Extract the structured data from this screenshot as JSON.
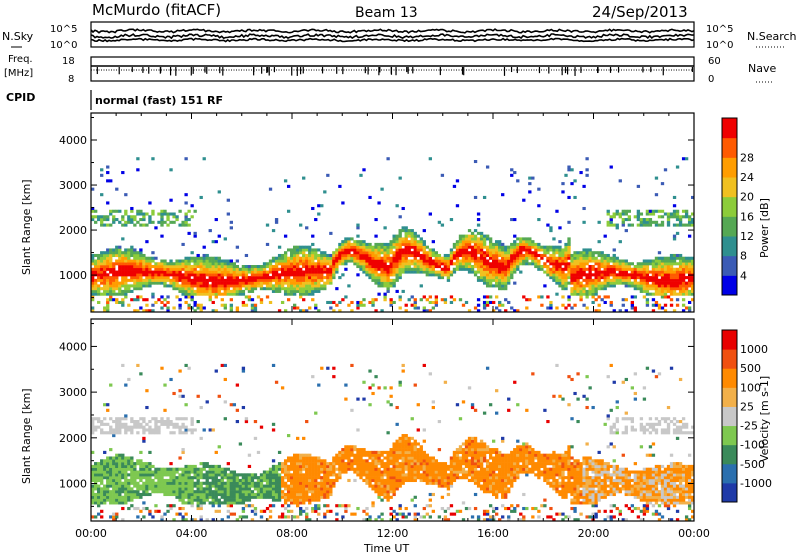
{
  "header": {
    "title": "McMurdo (fitACF)",
    "beam": "Beam 13",
    "date": "24/Sep/2013"
  },
  "noise_panel": {
    "left_label": "N.Sky",
    "right_label": "N.Search",
    "left_ticks": [
      "10^5",
      "10^0"
    ],
    "right_ticks": [
      "10^5",
      "10^0"
    ]
  },
  "freq_panel": {
    "left_label": "Freq.",
    "left_unit": "[MHz]",
    "right_label": "Nave",
    "left_ticks": [
      "18",
      "8"
    ],
    "right_ticks": [
      "60",
      "0"
    ]
  },
  "cpid": {
    "label": "CPID",
    "value": "normal (fast) 151 RF"
  },
  "chart_data": [
    {
      "type": "heatmap",
      "name": "power",
      "ylabel": "Slant Range [km]",
      "ylim": [
        180,
        4600
      ],
      "yticks": [
        1000,
        2000,
        3000,
        4000
      ],
      "xlim_hours": [
        0,
        24
      ],
      "colorbar": {
        "label": "Power [dB]",
        "ticks": [
          "4",
          "8",
          "12",
          "16",
          "20",
          "24",
          "28"
        ],
        "colors": [
          "#0000e6",
          "#3b5bb5",
          "#2f8f8f",
          "#55a854",
          "#8ccc3a",
          "#f0c020",
          "#ff9d00",
          "#ff5a00",
          "#ef0000"
        ]
      }
    },
    {
      "type": "heatmap",
      "name": "velocity",
      "ylabel": "Slant Range [km]",
      "ylim": [
        180,
        4600
      ],
      "yticks": [
        1000,
        2000,
        3000,
        4000
      ],
      "xlim_hours": [
        0,
        24
      ],
      "colorbar": {
        "label": "Velocity [m s-1]",
        "ticks": [
          "1000",
          "500",
          "100",
          "25",
          "-25",
          "-100",
          "-500",
          "-1000"
        ],
        "colors": [
          "#1f3aa8",
          "#2a6fae",
          "#3a8a5a",
          "#7ec850",
          "#c8c8c8",
          "#f2b04a",
          "#ff8a00",
          "#f05010",
          "#e80000"
        ]
      }
    }
  ],
  "xaxis": {
    "label": "Time UT",
    "ticks": [
      "00:00",
      "04:00",
      "08:00",
      "12:00",
      "16:00",
      "20:00",
      "00:00"
    ]
  }
}
